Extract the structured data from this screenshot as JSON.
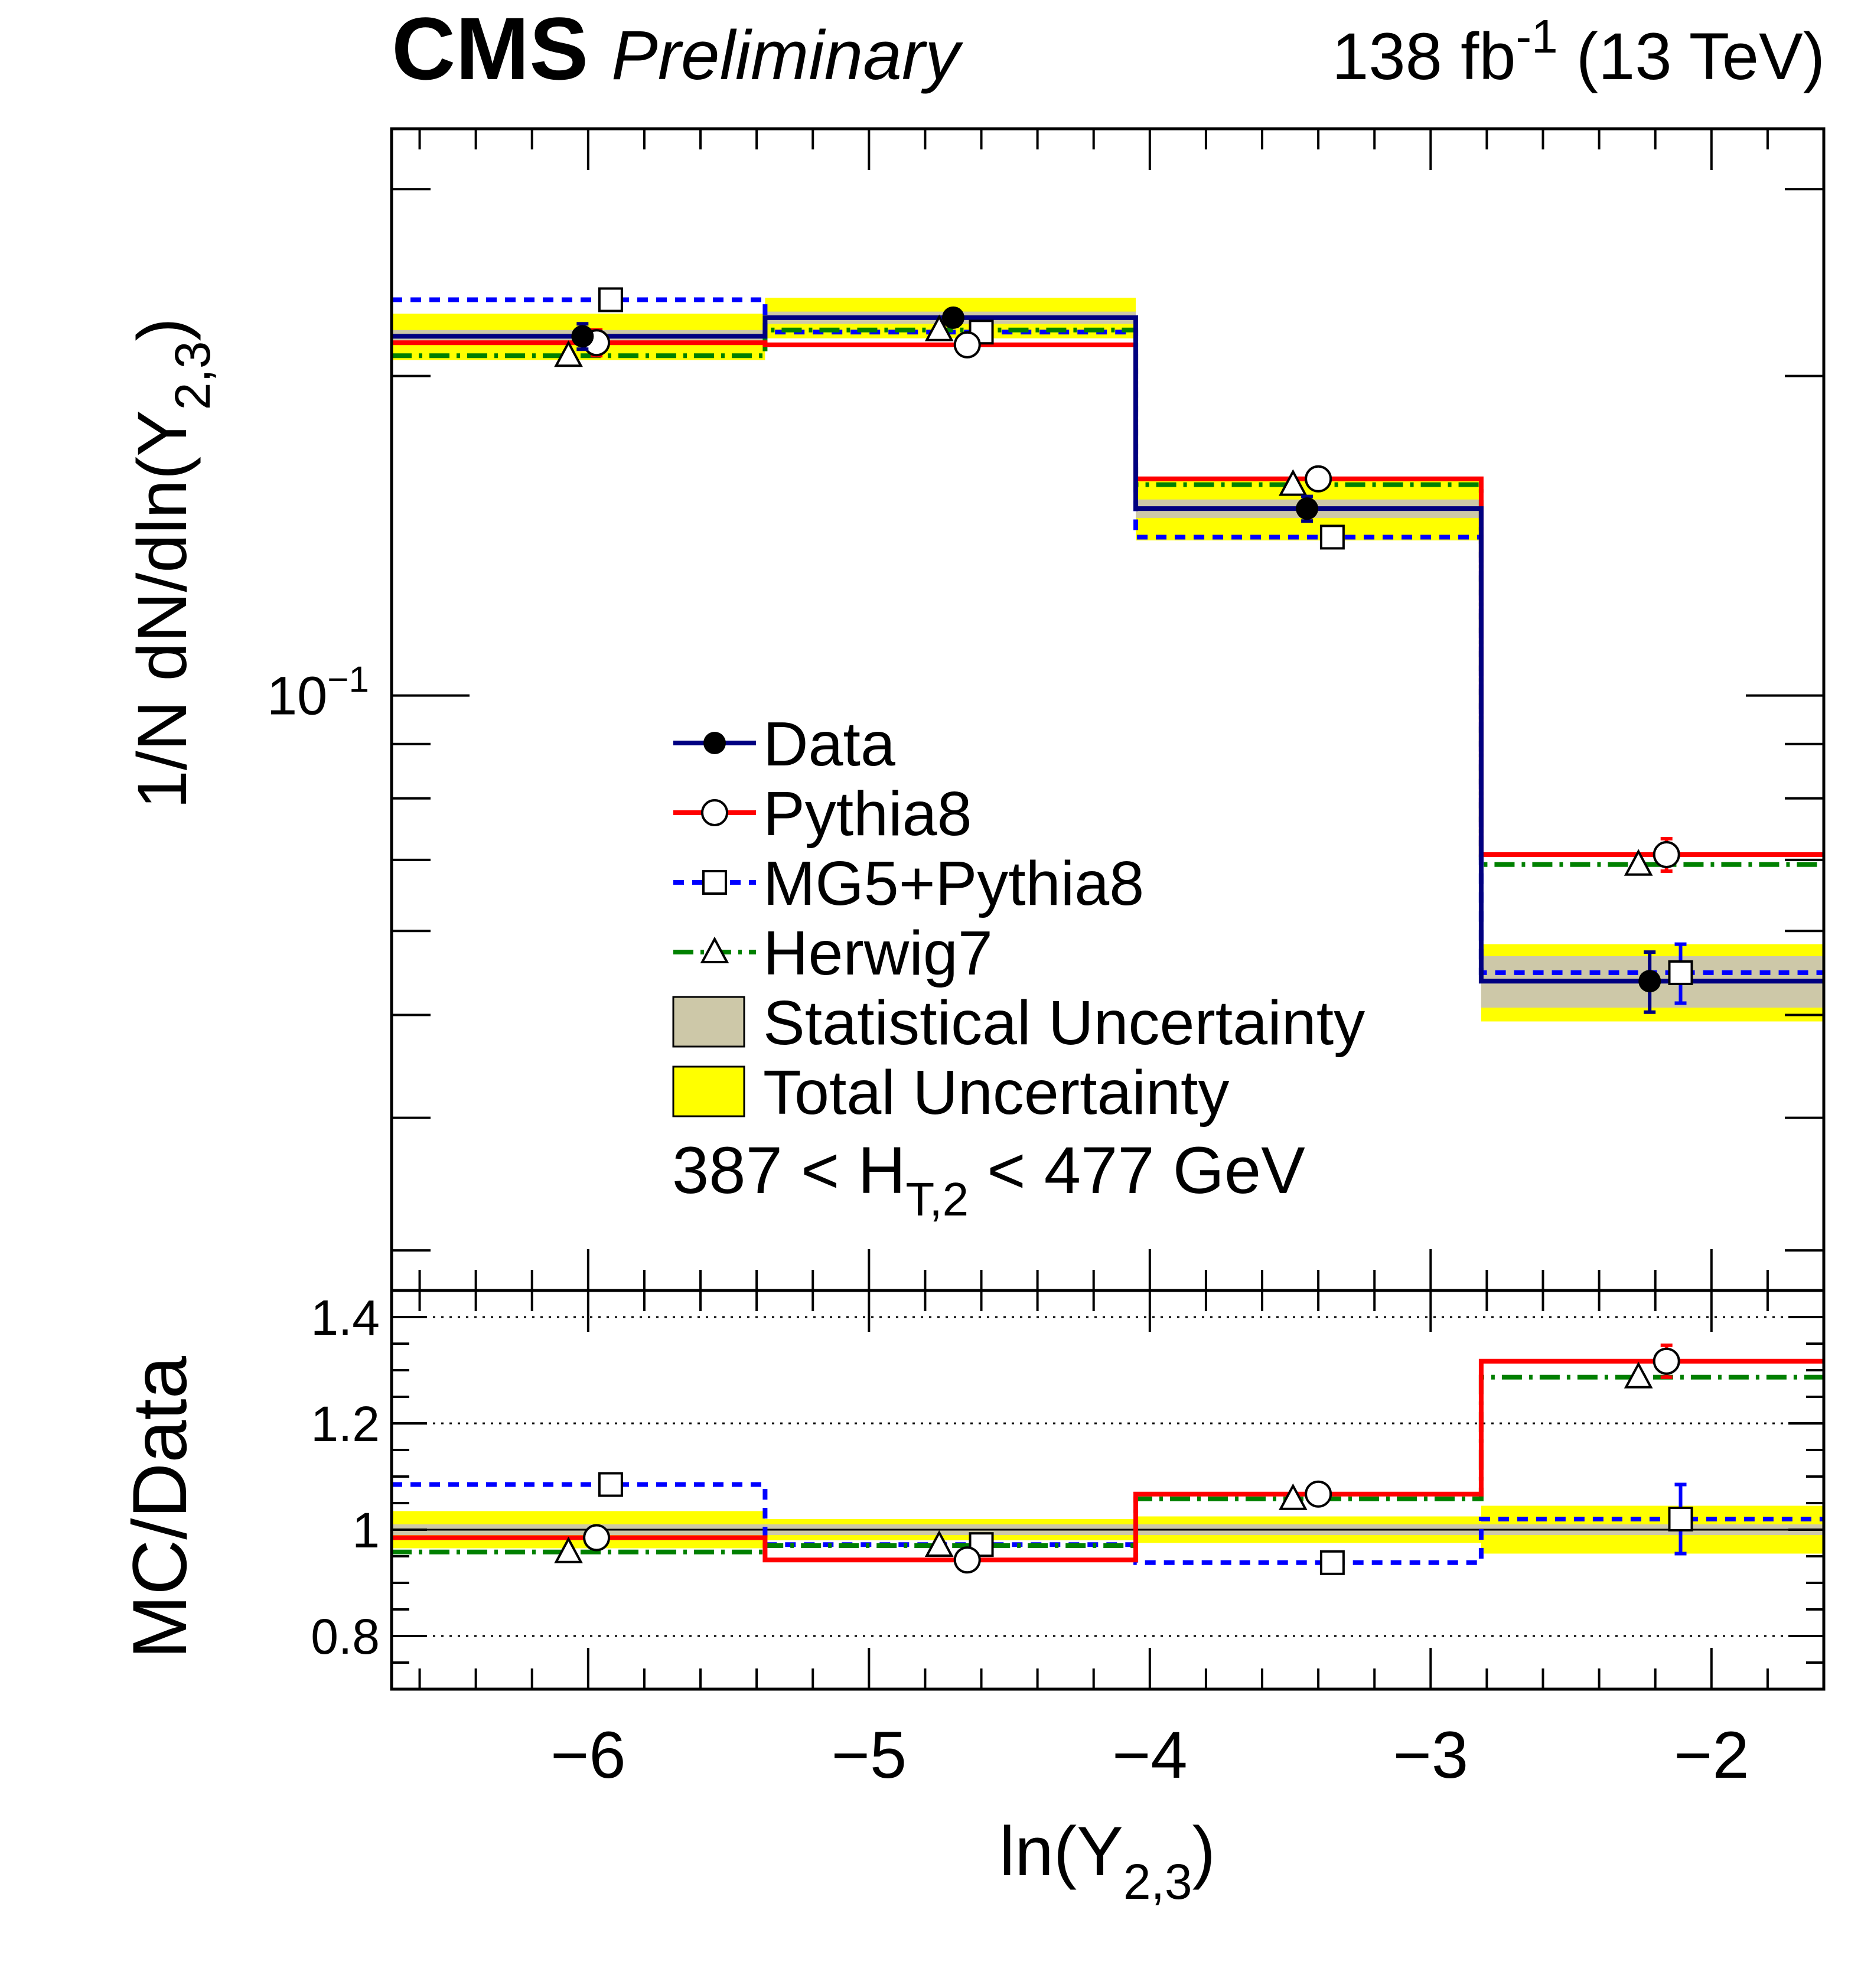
{
  "header": {
    "experiment": "CMS",
    "status": "Preliminary",
    "lumi_value": "138 fb",
    "lumi_exp": "-1",
    "energy": " (13 TeV)"
  },
  "chart_data": [
    {
      "type": "histogram",
      "panel": "main",
      "ylabel": {
        "base": "1/N dN/dln(Y",
        "sub": "2,3",
        "close": ")"
      },
      "xlabel": {
        "base": "ln(Y",
        "sub": "2,3",
        "close": ")"
      },
      "yscale": "log",
      "xlim": [
        -6.7,
        -1.6
      ],
      "ylim": [
        0.0275,
        0.342
      ],
      "ytick_label": {
        "value": 0.1,
        "base": "10",
        "exp": "−1"
      },
      "bin_edges": [
        -6.7,
        -5.37,
        -4.05,
        -2.82,
        -1.6
      ],
      "series": [
        {
          "name": "Data",
          "color": "#000080",
          "marker": "filled-circle",
          "values": [
            0.218,
            0.227,
            0.15,
            0.0538
          ],
          "marker_x": [
            -6.02,
            -4.7,
            -3.44,
            -2.22
          ],
          "errors": [
            0.006,
            0.004,
            0.004,
            0.0035
          ],
          "stat_unc": [
            0.003,
            0.003,
            0.003,
            0.003
          ],
          "total_unc": [
            0.011,
            0.01,
            0.01,
            0.0045
          ]
        },
        {
          "name": "Pythia8",
          "color": "#ff0000",
          "marker": "open-circle",
          "values": [
            0.215,
            0.214,
            0.16,
            0.0708
          ],
          "marker_x": [
            -5.97,
            -4.65,
            -3.4,
            -2.16
          ],
          "errors": [
            0.006,
            0.0,
            0.0,
            0.0025
          ]
        },
        {
          "name": "MG5+Pythia8",
          "color": "#0000ff",
          "marker": "open-square",
          "values": [
            0.236,
            0.22,
            0.141,
            0.0548
          ],
          "marker_x": [
            -5.92,
            -4.6,
            -3.35,
            -2.11
          ],
          "errors": [
            0.0,
            0.0,
            0.0,
            0.0035
          ]
        },
        {
          "name": "Herwig7",
          "color": "#008000",
          "marker": "open-triangle",
          "values": [
            0.209,
            0.221,
            0.158,
            0.0693
          ],
          "marker_x": [
            -6.07,
            -4.75,
            -3.49,
            -2.26
          ],
          "errors": [
            0.0,
            0.0,
            0.0,
            0.0
          ]
        }
      ],
      "legend": {
        "position": "center",
        "entries": [
          "Data",
          "Pythia8",
          "MG5+Pythia8",
          "Herwig7",
          "Statistical Uncertainty",
          "Total Uncertainty"
        ],
        "stat_color": "#cdc8a8",
        "total_color": "#ffff00"
      },
      "annotation": {
        "pre": "387 < H",
        "sub": "T,2",
        "post": " < 477 GeV"
      }
    },
    {
      "type": "histogram",
      "panel": "ratio",
      "ylabel": "MC/Data",
      "xlim": [
        -6.7,
        -1.6
      ],
      "ylim": [
        0.7,
        1.45
      ],
      "yticks": [
        0.8,
        1,
        1.2,
        1.4
      ],
      "ytick_labels": [
        "0.8",
        "1",
        "1.2",
        "1.4"
      ],
      "xticks": [
        -6,
        -5,
        -4,
        -3,
        -2
      ],
      "xtick_labels": [
        "−6",
        "−5",
        "−4",
        "−3",
        "−2"
      ],
      "reference_lines": [
        0.8,
        1.2,
        1.4
      ],
      "bin_edges": [
        -6.7,
        -5.37,
        -4.05,
        -2.82,
        -1.6
      ],
      "data_total_unc": [
        0.035,
        0.02,
        0.025,
        0.045
      ],
      "data_stat_unc": [
        0.01,
        0.01,
        0.01,
        0.01
      ],
      "series": [
        {
          "name": "Pythia8",
          "color": "#ff0000",
          "values": [
            0.985,
            0.943,
            1.067,
            1.317
          ],
          "marker_x": [
            -5.97,
            -4.65,
            -3.4,
            -2.16
          ],
          "errors": [
            0.02,
            0.0,
            0.015,
            0.03
          ]
        },
        {
          "name": "MG5+Pythia8",
          "color": "#0000ff",
          "values": [
            1.085,
            0.972,
            0.938,
            1.02
          ],
          "marker_x": [
            -5.92,
            -4.6,
            -3.35,
            -2.11
          ],
          "errors": [
            0.0,
            0.0,
            0.0,
            0.065
          ]
        },
        {
          "name": "Herwig7",
          "color": "#008000",
          "values": [
            0.958,
            0.97,
            1.058,
            1.287
          ],
          "marker_x": [
            -6.07,
            -4.75,
            -3.49,
            -2.26
          ],
          "errors": [
            0.0,
            0.0,
            0.0,
            0.0
          ]
        }
      ]
    }
  ]
}
